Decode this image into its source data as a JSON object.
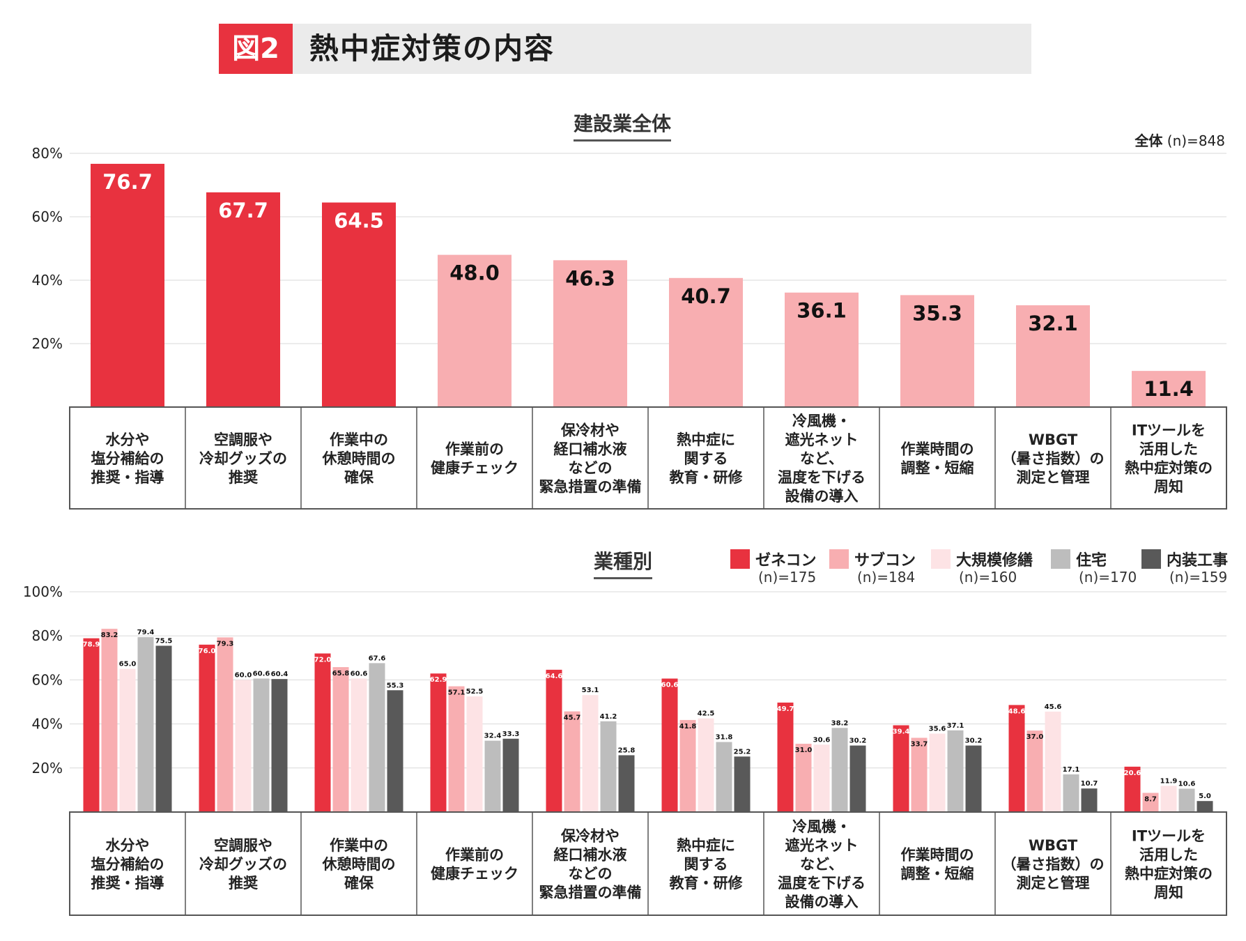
{
  "figure": {
    "label": "図2",
    "title": "熱中症対策の内容"
  },
  "colors": {
    "red": "#e8323f",
    "pink": "#f8aeb1",
    "light_pink": "#fde3e5",
    "gray": "#bdbdbd",
    "dark_gray": "#595959",
    "gridline": "#d9d9d9",
    "table_border": "#555555"
  },
  "categories": [
    [
      "水分や",
      "塩分補給の",
      "推奨・指導"
    ],
    [
      "空調服や",
      "冷却グッズの",
      "推奨"
    ],
    [
      "作業中の",
      "休憩時間の",
      "確保"
    ],
    [
      "作業前の",
      "健康チェック"
    ],
    [
      "保冷材や",
      "経口補水液",
      "などの",
      "緊急措置の準備"
    ],
    [
      "熱中症に",
      "関する",
      "教育・研修"
    ],
    [
      "冷風機・",
      "遮光ネット",
      "など、",
      "温度を下げる",
      "設備の導入"
    ],
    [
      "作業時間の",
      "調整・短縮"
    ],
    [
      "WBGT",
      "（暑さ指数）の",
      "測定と管理"
    ],
    [
      "ITツールを",
      "活用した",
      "熱中症対策の",
      "周知"
    ]
  ],
  "chart_data": [
    {
      "type": "bar",
      "title": "建設業全体",
      "note": {
        "bold": "全体",
        "rest": " (n)=848"
      },
      "ylim": [
        0,
        80
      ],
      "yticks": [
        "80%",
        "60%",
        "40%",
        "20%"
      ],
      "values": [
        76.7,
        67.7,
        64.5,
        48.0,
        46.3,
        40.7,
        36.1,
        35.3,
        32.1,
        11.4
      ],
      "value_labels": [
        "76.7",
        "67.7",
        "64.5",
        "48.0",
        "46.3",
        "40.7",
        "36.1",
        "35.3",
        "32.1",
        "11.4"
      ],
      "highlight_top": 3
    },
    {
      "type": "bar",
      "title": "業種別",
      "ylim": [
        0,
        100
      ],
      "yticks": [
        "100%",
        "80%",
        "60%",
        "40%",
        "20%"
      ],
      "series": [
        {
          "name": "ゼネコン",
          "n": "(n)=175",
          "values": [
            78.9,
            76.0,
            72.0,
            62.9,
            64.6,
            60.6,
            49.7,
            39.4,
            48.6,
            20.6
          ],
          "labels": [
            "78.9",
            "76.0",
            "72.0",
            "62.9",
            "64.6",
            "60.6",
            "49.7",
            "39.4",
            "48.6",
            "20.6"
          ]
        },
        {
          "name": "サブコン",
          "n": "(n)=184",
          "values": [
            83.2,
            79.3,
            65.8,
            57.1,
            45.7,
            41.8,
            31.0,
            33.7,
            37.0,
            8.7
          ],
          "labels": [
            "83.2",
            "79.3",
            "65.8",
            "57.1",
            "45.7",
            "41.8",
            "31.0",
            "33.7",
            "37.0",
            "8.7"
          ]
        },
        {
          "name": "大規模修繕",
          "n": "(n)=160",
          "values": [
            65.0,
            60.0,
            60.6,
            52.5,
            53.1,
            42.5,
            30.6,
            35.6,
            45.6,
            11.9
          ],
          "labels": [
            "65.0",
            "60.0",
            "60.6",
            "52.5",
            "53.1",
            "42.5",
            "30.6",
            "35.6",
            "45.6",
            "11.9"
          ]
        },
        {
          "name": "住宅",
          "n": "(n)=170",
          "values": [
            79.4,
            60.6,
            67.6,
            32.4,
            41.2,
            31.8,
            38.2,
            37.1,
            17.1,
            10.6
          ],
          "labels": [
            "79.4",
            "60.6",
            "67.6",
            "32.4",
            "41.2",
            "31.8",
            "38.2",
            "37.1",
            "17.1",
            "10.6"
          ]
        },
        {
          "name": "内装工事",
          "n": "(n)=159",
          "values": [
            75.5,
            60.4,
            55.3,
            33.3,
            25.8,
            25.2,
            30.2,
            30.2,
            10.7,
            5.0
          ],
          "labels": [
            "75.5",
            "60.4",
            "55.3",
            "33.3",
            "25.8",
            "25.2",
            "30.2",
            "30.2",
            "10.7",
            "5.0"
          ]
        }
      ]
    }
  ]
}
